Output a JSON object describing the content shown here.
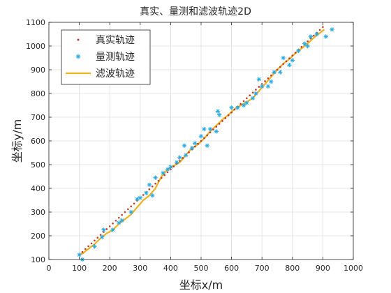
{
  "chart_data": {
    "type": "line",
    "title": "真实、量测和滤波轨迹2D",
    "xlabel": "坐标x/m",
    "ylabel": "坐标y/m",
    "xlim": [
      0,
      1000
    ],
    "ylim": [
      100,
      1100
    ],
    "xticks": [
      0,
      100,
      200,
      300,
      400,
      500,
      600,
      700,
      800,
      900,
      1000
    ],
    "yticks": [
      100,
      200,
      300,
      400,
      500,
      600,
      700,
      800,
      900,
      1000,
      1100
    ],
    "grid": true,
    "legend_position": "top-left",
    "series": [
      {
        "name": "真实轨迹",
        "style": "dot",
        "color": "#c0392b",
        "x": [
          100,
          110,
          120,
          130,
          140,
          150,
          160,
          170,
          180,
          190,
          200,
          210,
          220,
          230,
          240,
          250,
          260,
          270,
          280,
          290,
          300,
          310,
          320,
          330,
          340,
          350,
          360,
          370,
          380,
          390,
          400,
          410,
          420,
          430,
          440,
          450,
          460,
          470,
          480,
          490,
          500,
          510,
          520,
          530,
          540,
          550,
          560,
          570,
          580,
          590,
          600,
          610,
          620,
          630,
          640,
          650,
          660,
          670,
          680,
          690,
          700,
          710,
          720,
          730,
          740,
          750,
          760,
          770,
          780,
          790,
          800,
          810,
          820,
          830,
          840,
          850,
          860,
          870,
          880,
          890,
          900
        ],
        "y": [
          120,
          132,
          144,
          156,
          168,
          180,
          192,
          204,
          216,
          228,
          240,
          252,
          264,
          276,
          288,
          300,
          312,
          324,
          336,
          348,
          360,
          372,
          384,
          396,
          408,
          420,
          432,
          444,
          456,
          468,
          480,
          492,
          504,
          516,
          528,
          540,
          552,
          564,
          576,
          588,
          600,
          612,
          624,
          636,
          648,
          660,
          672,
          684,
          696,
          708,
          720,
          732,
          744,
          756,
          768,
          780,
          792,
          804,
          816,
          828,
          840,
          852,
          864,
          876,
          888,
          900,
          912,
          924,
          936,
          948,
          960,
          972,
          984,
          996,
          1008,
          1020,
          1032,
          1044,
          1056,
          1068,
          1080
        ]
      },
      {
        "name": "量测轨迹",
        "style": "asterisk",
        "color": "#29abe2",
        "x": [
          100,
          110,
          150,
          175,
          180,
          210,
          230,
          240,
          270,
          290,
          300,
          320,
          330,
          340,
          350,
          375,
          390,
          400,
          420,
          430,
          445,
          450,
          470,
          480,
          500,
          510,
          520,
          530,
          550,
          555,
          560,
          600,
          620,
          640,
          650,
          670,
          680,
          690,
          700,
          720,
          730,
          740,
          760,
          770,
          790,
          800,
          820,
          840,
          850,
          860,
          880,
          910,
          930
        ],
        "y": [
          120,
          100,
          155,
          195,
          225,
          225,
          255,
          265,
          300,
          355,
          360,
          380,
          415,
          370,
          445,
          465,
          480,
          490,
          510,
          530,
          580,
          540,
          570,
          590,
          620,
          650,
          580,
          650,
          640,
          725,
          710,
          740,
          740,
          750,
          760,
          780,
          800,
          860,
          830,
          830,
          850,
          890,
          890,
          950,
          920,
          940,
          980,
          1010,
          1000,
          1040,
          1050,
          1040,
          1070
        ]
      },
      {
        "name": "滤波轨迹",
        "style": "line",
        "color": "#edb120",
        "x": [
          100,
          110,
          120,
          130,
          150,
          170,
          190,
          210,
          230,
          250,
          270,
          290,
          310,
          330,
          350,
          370,
          390,
          410,
          430,
          450,
          470,
          490,
          510,
          530,
          550,
          570,
          590,
          610,
          630,
          650,
          670,
          690,
          710,
          730,
          750,
          770,
          790,
          810,
          830,
          850,
          870,
          890,
          905
        ],
        "y": [
          120,
          125,
          135,
          145,
          165,
          190,
          210,
          225,
          250,
          270,
          290,
          320,
          350,
          370,
          400,
          450,
          480,
          495,
          510,
          540,
          570,
          585,
          610,
          640,
          665,
          690,
          710,
          735,
          750,
          765,
          780,
          810,
          840,
          870,
          900,
          925,
          945,
          970,
          990,
          1010,
          1035,
          1055,
          1070
        ]
      }
    ]
  }
}
